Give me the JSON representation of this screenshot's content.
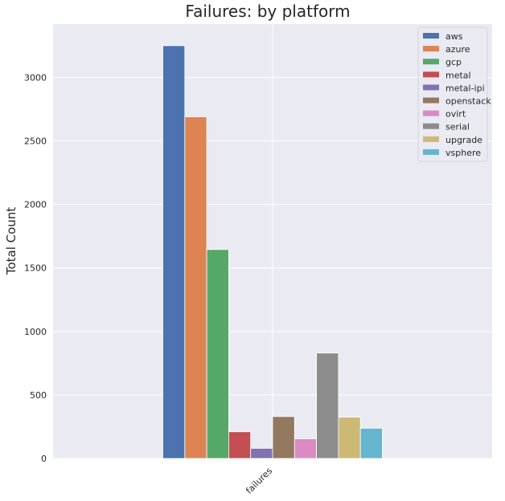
{
  "chart_data": {
    "type": "bar",
    "title": "Failures: by platform",
    "xlabel": "",
    "ylabel": "Total Count",
    "categories": [
      "failures"
    ],
    "ylim": [
      0,
      3420
    ],
    "yticks": [
      0,
      500,
      1000,
      1500,
      2000,
      2500,
      3000
    ],
    "grid": true,
    "legend_position": "top-right",
    "series": [
      {
        "name": "aws",
        "values": [
          3250
        ],
        "color": "#4c72b0"
      },
      {
        "name": "azure",
        "values": [
          2690
        ],
        "color": "#dd8452"
      },
      {
        "name": "gcp",
        "values": [
          1645
        ],
        "color": "#55a868"
      },
      {
        "name": "metal",
        "values": [
          210
        ],
        "color": "#c44e52"
      },
      {
        "name": "metal-ipi",
        "values": [
          80
        ],
        "color": "#8172b3"
      },
      {
        "name": "openstack",
        "values": [
          330
        ],
        "color": "#937860"
      },
      {
        "name": "ovirt",
        "values": [
          155
        ],
        "color": "#da8bc3"
      },
      {
        "name": "serial",
        "values": [
          830
        ],
        "color": "#8c8c8c"
      },
      {
        "name": "upgrade",
        "values": [
          325
        ],
        "color": "#ccb974"
      },
      {
        "name": "vsphere",
        "values": [
          238
        ],
        "color": "#64b5cd"
      }
    ]
  }
}
